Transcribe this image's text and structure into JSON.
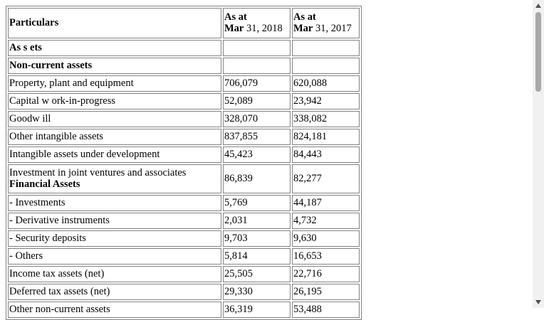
{
  "table": {
    "header": {
      "particulars": "Particulars",
      "col1_line1": "As at",
      "col1_month": "Mar",
      "col1_date": " 31, 2018",
      "col2_line1": "As at",
      "col2_month": "Mar",
      "col2_date": " 31, 2017"
    },
    "sections": {
      "assets": "As s ets",
      "non_current": "Non-current assets"
    },
    "rows": [
      {
        "label": "Property, plant and equipment",
        "v2018": "706,079",
        "v2017": "620,088"
      },
      {
        "label": "Capital w ork-in-progress",
        "v2018": "52,089",
        "v2017": "23,942"
      },
      {
        "label": "Goodw ill",
        "v2018": "328,070",
        "v2017": "338,082"
      },
      {
        "label": "Other intangible assets",
        "v2018": "837,855",
        "v2017": "824,181"
      },
      {
        "label": "Intangible assets under development",
        "v2018": "45,423",
        "v2017": "84,443"
      },
      {
        "label": "Investment in joint ventures and associates",
        "sublabel": "Financial Assets",
        "v2018": "86,839",
        "v2017": "82,277"
      },
      {
        "label": "- Investments",
        "v2018": "5,769",
        "v2017": "44,187"
      },
      {
        "label": "- Derivative instruments",
        "v2018": "2,031",
        "v2017": "4,732"
      },
      {
        "label": "- Security deposits",
        "v2018": "9,703",
        "v2017": "9,630"
      },
      {
        "label": "- Others",
        "v2018": "5,814",
        "v2017": "16,653"
      },
      {
        "label": "Income tax assets (net)",
        "v2018": "25,505",
        "v2017": "22,716"
      },
      {
        "label": "Deferred tax assets (net)",
        "v2018": "29,330",
        "v2017": "26,195"
      },
      {
        "label": "Other non-current assets",
        "v2018": "36,319",
        "v2017": "53,488"
      }
    ]
  },
  "scrollbar": {
    "up_icon": "triangle-up",
    "down_icon": "triangle-down",
    "scroll_position": 0.0
  }
}
